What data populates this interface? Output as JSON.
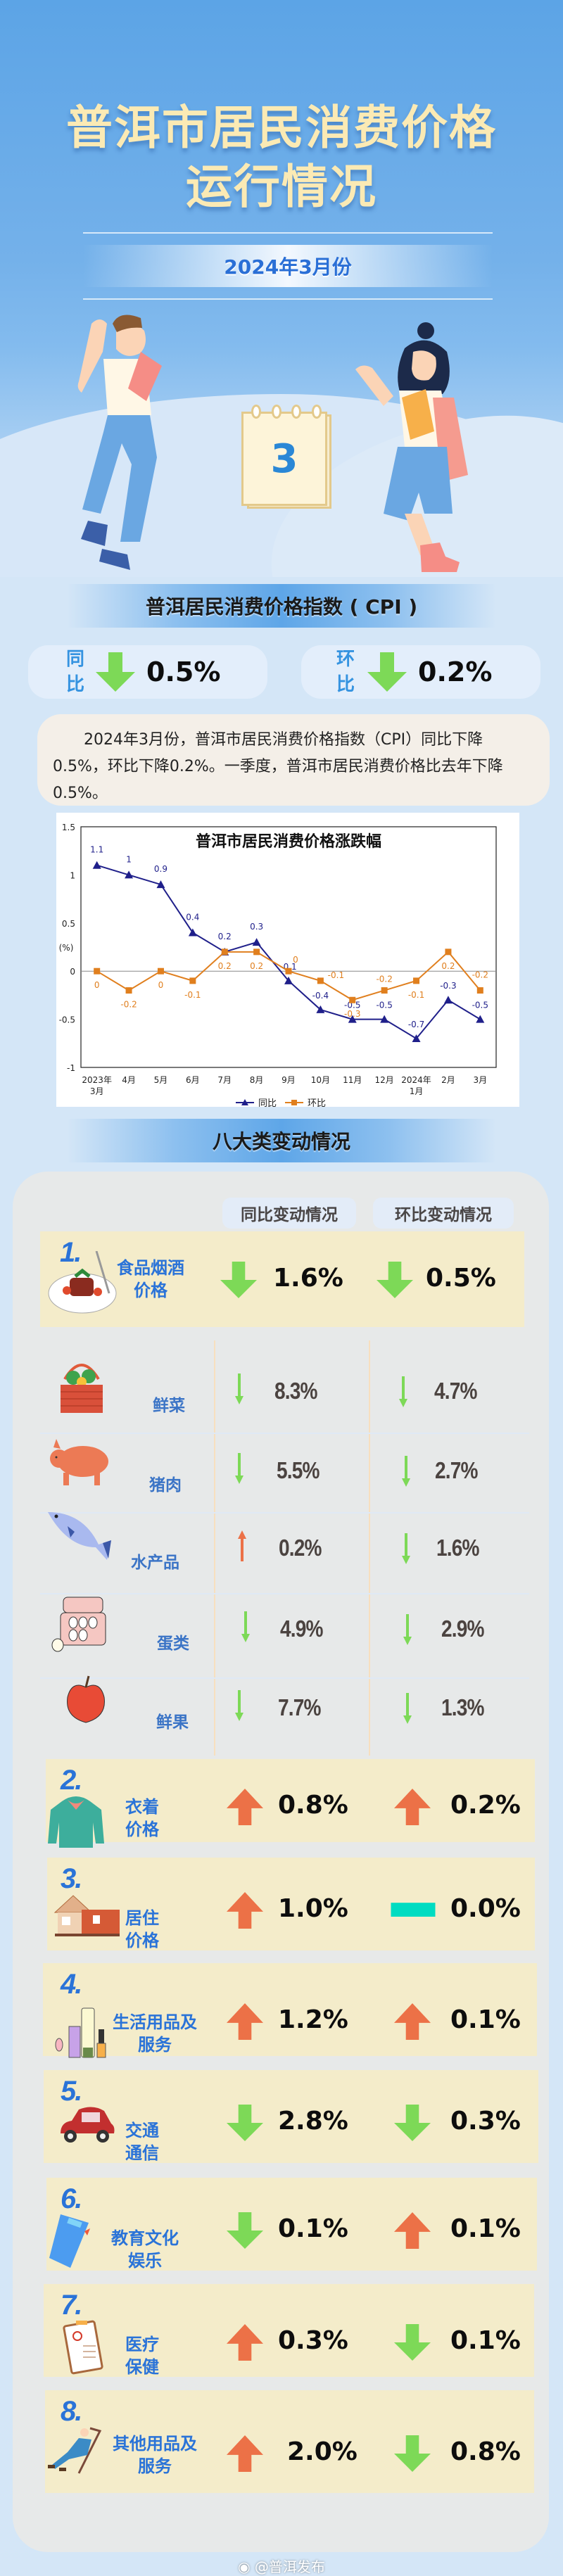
{
  "header": {
    "title_line1": "普洱市居民消费价格",
    "title_line2": "运行情况",
    "date": "2024年3月份",
    "calendar_month": "3"
  },
  "cpi": {
    "section_title": "普洱居民消费价格指数 ( CPI )",
    "yoy": {
      "label_top": "同",
      "label_bottom": "比",
      "direction": "down",
      "value": "0.5%"
    },
    "mom": {
      "label_top": "环",
      "label_bottom": "比",
      "direction": "down",
      "value": "0.2%"
    },
    "description": "2024年3月份，普洱市居民消费价格指数（CPI）同比下降0.5%，环比下降0.2%。一季度，普洱市居民消费价格比去年下降0.5%。"
  },
  "chart_data": {
    "type": "line",
    "title": "普洱市居民消费价格涨跌幅",
    "xlabel": "",
    "ylabel": "(%)",
    "ylim": [
      -1,
      1.5
    ],
    "yticks": [
      "1.5",
      "1",
      "0.5",
      "0",
      "-0.5",
      "-1"
    ],
    "categories": [
      "2023年3月",
      "4月",
      "5月",
      "6月",
      "7月",
      "8月",
      "9月",
      "10月",
      "11月",
      "12月",
      "2024年1月",
      "2月",
      "3月"
    ],
    "series": [
      {
        "name": "同比",
        "color": "#1f1f8a",
        "marker": "triangle",
        "values": [
          1.1,
          1,
          0.9,
          0.4,
          0.2,
          0.3,
          -0.1,
          -0.4,
          -0.5,
          -0.5,
          -0.7,
          -0.3,
          -0.5
        ]
      },
      {
        "name": "环比",
        "color": "#e07f1e",
        "marker": "square",
        "values": [
          0,
          -0.2,
          0,
          -0.1,
          0.2,
          0.2,
          0,
          -0.1,
          -0.3,
          -0.2,
          -0.1,
          0.2,
          -0.2
        ]
      }
    ],
    "legend": [
      "同比",
      "环比"
    ],
    "legend_position": "bottom",
    "grid": false
  },
  "categories_section": {
    "section_title": "八大类变动情况",
    "col_yoy": "同比变动情况",
    "col_mom": "环比变动情况",
    "main": [
      {
        "num": "1.",
        "name_l1": "食品烟酒",
        "name_l2": "价格",
        "icon": "food-plate-icon",
        "yoy_dir": "down",
        "yoy": "1.6%",
        "mom_dir": "down",
        "mom": "0.5%"
      },
      {
        "num": "2.",
        "name_l1": "衣着",
        "name_l2": "价格",
        "icon": "hoodie-icon",
        "yoy_dir": "up",
        "yoy": "0.8%",
        "mom_dir": "up",
        "mom": "0.2%"
      },
      {
        "num": "3.",
        "name_l1": "居住",
        "name_l2": "价格",
        "icon": "house-icon",
        "yoy_dir": "up",
        "yoy": "1.0%",
        "mom_dir": "flat",
        "mom": "0.0%"
      },
      {
        "num": "4.",
        "name_l1": "生活用品及",
        "name_l2": "服务",
        "icon": "cosmetics-icon",
        "yoy_dir": "up",
        "yoy": "1.2%",
        "mom_dir": "up",
        "mom": "0.1%"
      },
      {
        "num": "5.",
        "name_l1": "交通",
        "name_l2": "通信",
        "icon": "car-icon",
        "yoy_dir": "down",
        "yoy": "2.8%",
        "mom_dir": "down",
        "mom": "0.3%"
      },
      {
        "num": "6.",
        "name_l1": "教育文化",
        "name_l2": "娱乐",
        "icon": "book-icon",
        "yoy_dir": "down",
        "yoy": "0.1%",
        "mom_dir": "up",
        "mom": "0.1%"
      },
      {
        "num": "7.",
        "name_l1": "医疗",
        "name_l2": "保健",
        "icon": "clipboard-icon",
        "yoy_dir": "up",
        "yoy": "0.3%",
        "mom_dir": "down",
        "mom": "0.1%"
      },
      {
        "num": "8.",
        "name_l1": "其他用品及",
        "name_l2": "服务",
        "icon": "lounge-chair-icon",
        "yoy_dir": "up",
        "yoy": "2.0%",
        "mom_dir": "down",
        "mom": "0.8%"
      }
    ],
    "food_sub": [
      {
        "name": "鲜菜",
        "icon": "vegetable-basket-icon",
        "yoy_dir": "down",
        "yoy": "8.3%",
        "mom_dir": "down",
        "mom": "4.7%"
      },
      {
        "name": "猪肉",
        "icon": "pig-icon",
        "yoy_dir": "down",
        "yoy": "5.5%",
        "mom_dir": "down",
        "mom": "2.7%"
      },
      {
        "name": "水产品",
        "icon": "fish-icon",
        "yoy_dir": "up",
        "yoy": "0.2%",
        "mom_dir": "down",
        "mom": "1.6%"
      },
      {
        "name": "蛋类",
        "icon": "egg-carton-icon",
        "yoy_dir": "down",
        "yoy": "4.9%",
        "mom_dir": "down",
        "mom": "2.9%"
      },
      {
        "name": "鲜果",
        "icon": "apple-icon",
        "yoy_dir": "down",
        "yoy": "7.7%",
        "mom_dir": "down",
        "mom": "1.3%"
      }
    ]
  },
  "colors": {
    "up": "#ec7147",
    "down": "#7dd957",
    "flat": "#00dcc1",
    "title": "#fbeab4",
    "accent_blue": "#2a73d8"
  },
  "watermark": "@普洱发布"
}
